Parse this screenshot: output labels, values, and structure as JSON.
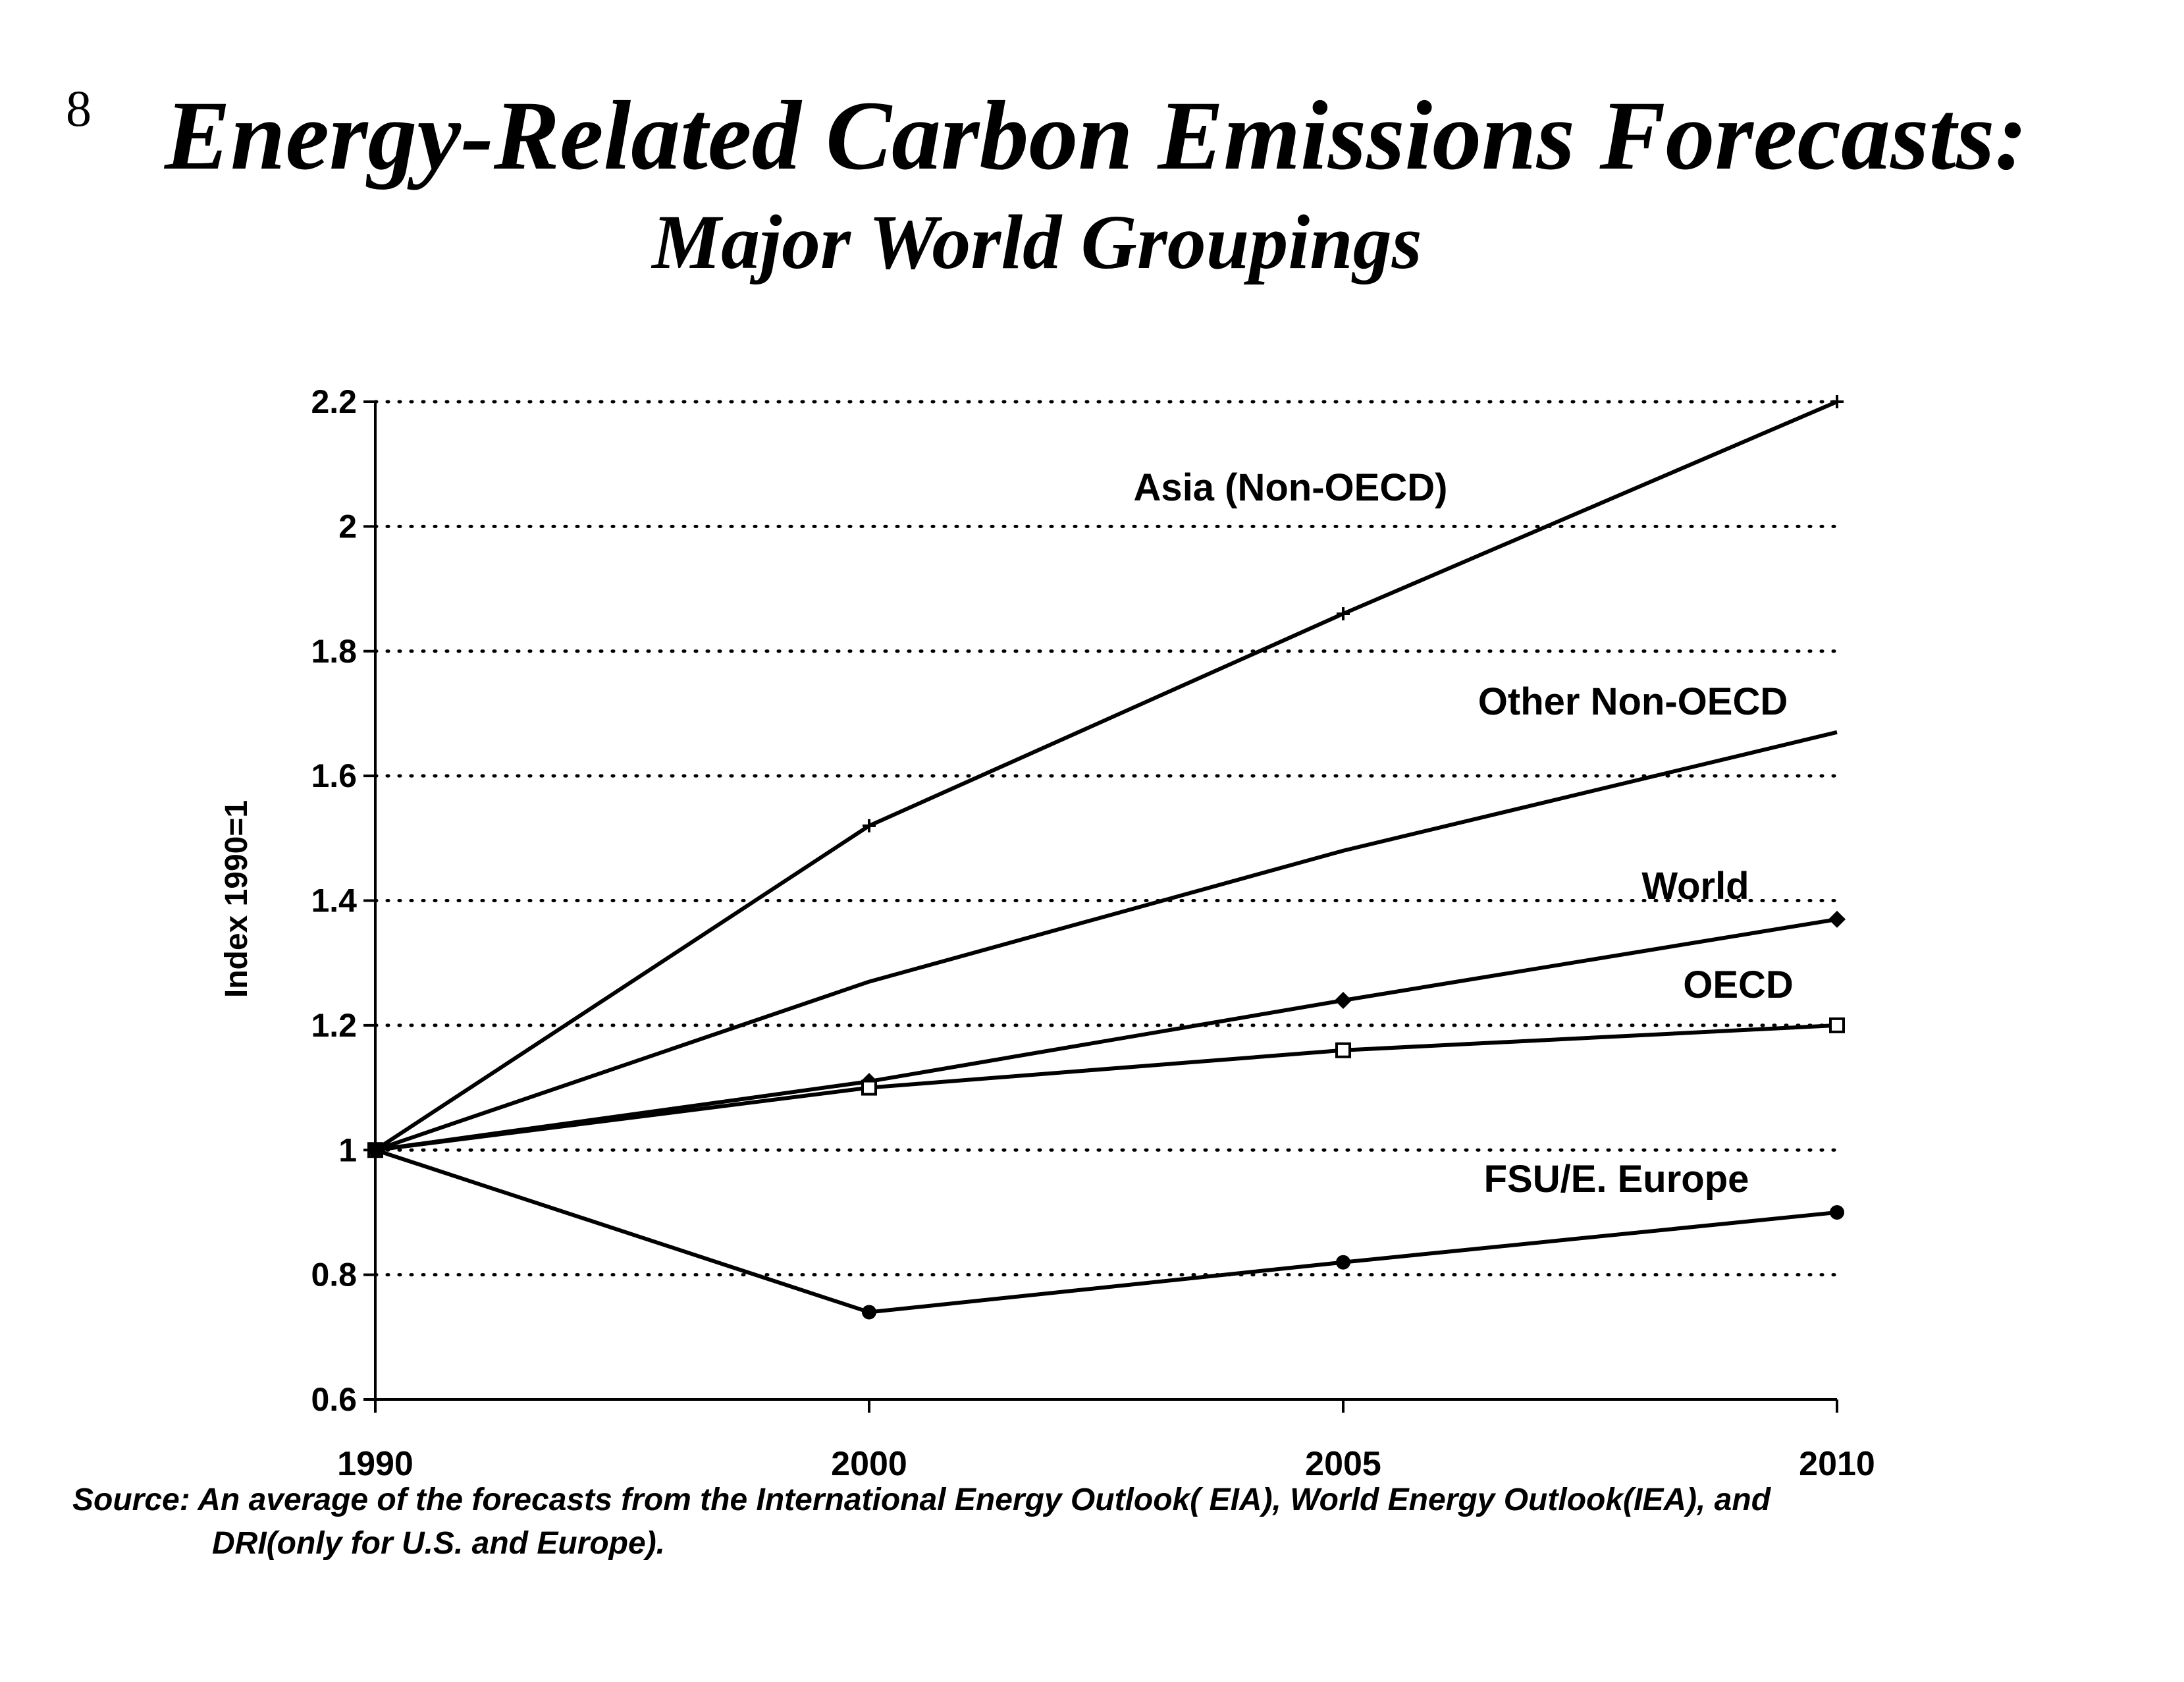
{
  "page_number": "8",
  "title": "Energy-Related Carbon Emissions Forecasts:",
  "subtitle": "Major World Groupings",
  "source": {
    "line1": "Source: An average of the forecasts from the International Energy Outlook( EIA), World Energy Outlook(IEA), and",
    "line2": "DRI(only for U.S. and Europe)."
  },
  "chart_data": {
    "type": "line",
    "x": [
      1990,
      2000,
      2005,
      2010
    ],
    "x_tick_labels": [
      "1990",
      "2000",
      "2005",
      "2010"
    ],
    "ylabel": "Index 1990=1",
    "ylim": [
      0.6,
      2.2
    ],
    "y_ticks": [
      0.6,
      0.8,
      1,
      1.2,
      1.4,
      1.6,
      1.8,
      2,
      2.2
    ],
    "y_tick_labels": [
      "0.6",
      "0.8",
      "1",
      "1.2",
      "1.4",
      "1.6",
      "1.8",
      "2",
      "2.2"
    ],
    "grid": "horizontal dotted",
    "series": [
      {
        "name": "Asia (Non-OECD)",
        "values": [
          1.0,
          1.52,
          1.86,
          2.2
        ],
        "marker": "plus"
      },
      {
        "name": "Other Non-OECD",
        "values": [
          1.0,
          1.27,
          1.48,
          1.67
        ],
        "marker": "none"
      },
      {
        "name": "World",
        "values": [
          1.0,
          1.11,
          1.24,
          1.37
        ],
        "marker": "diamond"
      },
      {
        "name": "OECD",
        "values": [
          1.0,
          1.1,
          1.16,
          1.2
        ],
        "marker": "square"
      },
      {
        "name": "FSU/E. Europe",
        "values": [
          1.0,
          0.74,
          0.82,
          0.9
        ],
        "marker": "circle"
      }
    ]
  }
}
